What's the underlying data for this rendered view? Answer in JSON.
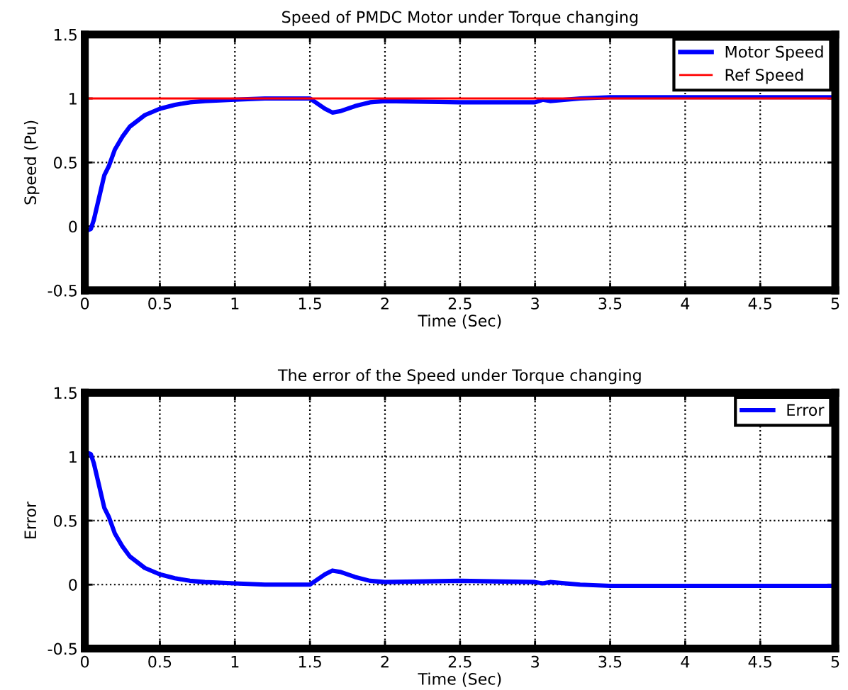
{
  "chart_data": [
    {
      "type": "line",
      "title": "Speed of PMDC Motor under Torque changing",
      "xlabel": "Time (Sec)",
      "ylabel": "Speed (Pu)",
      "series": [
        {
          "name": "Motor Speed",
          "color": "#0000ff",
          "x": [
            0,
            0.02,
            0.04,
            0.06,
            0.1,
            0.13,
            0.16,
            0.2,
            0.25,
            0.3,
            0.4,
            0.5,
            0.6,
            0.7,
            0.8,
            1.0,
            1.2,
            1.5,
            1.55,
            1.6,
            1.65,
            1.7,
            1.8,
            1.9,
            2.0,
            2.5,
            3.0,
            3.05,
            3.1,
            3.3,
            3.5,
            4,
            5
          ],
          "values": [
            0,
            -0.03,
            -0.02,
            0.05,
            0.25,
            0.4,
            0.47,
            0.6,
            0.7,
            0.78,
            0.87,
            0.92,
            0.95,
            0.97,
            0.98,
            0.99,
            1.0,
            1.0,
            0.96,
            0.92,
            0.89,
            0.9,
            0.94,
            0.97,
            0.98,
            0.97,
            0.97,
            0.99,
            0.98,
            1.0,
            1.01,
            1.01,
            1.01
          ]
        },
        {
          "name": "Ref Speed",
          "color": "#ff0000",
          "x": [
            0,
            5
          ],
          "values": [
            1,
            1
          ]
        }
      ],
      "xlim": [
        0,
        5
      ],
      "ylim": [
        -0.5,
        1.5
      ],
      "xticks": [
        0,
        0.5,
        1,
        1.5,
        2,
        2.5,
        3,
        3.5,
        4,
        4.5,
        5
      ],
      "yticks": [
        -0.5,
        0,
        0.5,
        1,
        1.5
      ],
      "grid": true,
      "legend": "top right",
      "line_style": "solid",
      "marker": "none"
    },
    {
      "type": "line",
      "title": "The error of the Speed under Torque changing",
      "xlabel": "Time (Sec)",
      "ylabel": "Error",
      "series": [
        {
          "name": "Error",
          "color": "#0000ff",
          "x": [
            0,
            0.02,
            0.04,
            0.06,
            0.1,
            0.13,
            0.16,
            0.2,
            0.25,
            0.3,
            0.4,
            0.5,
            0.6,
            0.7,
            0.8,
            1.0,
            1.2,
            1.5,
            1.55,
            1.6,
            1.65,
            1.7,
            1.8,
            1.9,
            2.0,
            2.5,
            3.0,
            3.05,
            3.1,
            3.3,
            3.5,
            4,
            5
          ],
          "values": [
            1.0,
            1.03,
            1.02,
            0.95,
            0.75,
            0.6,
            0.53,
            0.4,
            0.3,
            0.22,
            0.13,
            0.08,
            0.05,
            0.03,
            0.02,
            0.01,
            0,
            0,
            0.04,
            0.08,
            0.11,
            0.1,
            0.06,
            0.03,
            0.02,
            0.03,
            0.02,
            0.01,
            0.02,
            0,
            -0.01,
            -0.01,
            -0.01
          ]
        }
      ],
      "xlim": [
        0,
        5
      ],
      "ylim": [
        -0.5,
        1.5
      ],
      "xticks": [
        0,
        0.5,
        1,
        1.5,
        2,
        2.5,
        3,
        3.5,
        4,
        4.5,
        5
      ],
      "yticks": [
        -0.5,
        0,
        0.5,
        1,
        1.5
      ],
      "grid": true,
      "legend": "top right",
      "line_style": "solid",
      "marker": "none"
    }
  ]
}
